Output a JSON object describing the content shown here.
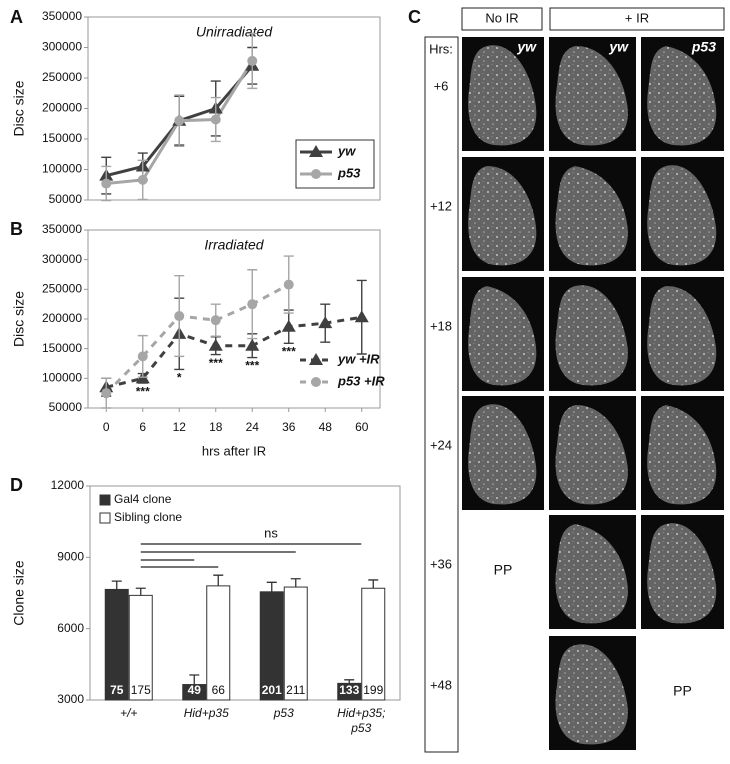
{
  "chart_data": [
    {
      "type": "line",
      "panel": "A",
      "title": "Unirradiated",
      "ylabel": "Disc size",
      "categories": [
        null,
        null,
        null,
        null,
        null,
        null,
        null,
        null
      ],
      "ylim": [
        50000,
        350000
      ],
      "yticks": [
        50000,
        100000,
        150000,
        200000,
        250000,
        300000,
        350000
      ],
      "legend": "lower right",
      "legend_box": true,
      "series": [
        {
          "name": "yw",
          "color": "#404040",
          "marker": "triangle",
          "dashed": false,
          "values": [
            90000,
            105000,
            180000,
            200000,
            270000,
            null,
            null,
            null
          ],
          "errors": [
            30000,
            22000,
            40000,
            45000,
            30000,
            null,
            null,
            null
          ]
        },
        {
          "name": "p53",
          "color": "#a6a6a6",
          "marker": "circle",
          "dashed": false,
          "values": [
            77000,
            83000,
            180000,
            182000,
            278000,
            null,
            null,
            null
          ],
          "errors": [
            28000,
            32000,
            42000,
            36000,
            45000,
            null,
            null,
            null
          ]
        }
      ]
    },
    {
      "type": "line",
      "panel": "B",
      "title": "Irradiated",
      "ylabel": "Disc size",
      "xlabel": "hrs after IR",
      "categories": [
        "0",
        "6",
        "12",
        "18",
        "24",
        "36",
        "48",
        "60"
      ],
      "ylim": [
        50000,
        350000
      ],
      "yticks": [
        50000,
        100000,
        150000,
        200000,
        250000,
        300000,
        350000
      ],
      "legend": "lower right",
      "legend_box": false,
      "annotations": [
        null,
        "***",
        "*",
        "***",
        "***",
        "***",
        null,
        null
      ],
      "series": [
        {
          "name": "yw +IR",
          "color": "#404040",
          "marker": "triangle",
          "dashed": true,
          "values": [
            85000,
            100000,
            175000,
            155000,
            155000,
            187000,
            193000,
            203000
          ],
          "errors": [
            15000,
            8000,
            60000,
            15000,
            20000,
            28000,
            32000,
            62000
          ]
        },
        {
          "name": "p53 +IR",
          "color": "#a6a6a6",
          "marker": "circle",
          "dashed": true,
          "values": [
            75000,
            137000,
            205000,
            198000,
            225000,
            258000,
            null,
            null
          ],
          "errors": [
            25000,
            35000,
            68000,
            27000,
            58000,
            48000,
            null,
            null
          ]
        }
      ]
    },
    {
      "type": "bar",
      "panel": "D",
      "ylabel": "Clone size",
      "categories": [
        "+/+",
        "Hid+p35",
        "p53",
        "Hid+p35; p53"
      ],
      "ylim": [
        3000,
        12000
      ],
      "yticks": [
        3000,
        6000,
        9000,
        12000
      ],
      "annotation": "ns",
      "series": [
        {
          "name": "Gal4 clone",
          "color": "#333333",
          "values": [
            7650,
            3650,
            7550,
            3700
          ],
          "errors": [
            350,
            400,
            400,
            150
          ],
          "counts": [
            "75",
            "49",
            "201",
            "133"
          ]
        },
        {
          "name": "Sibling clone",
          "color": "#ffffff",
          "values": [
            7400,
            7800,
            7750,
            7700
          ],
          "errors": [
            300,
            450,
            350,
            350
          ],
          "counts": [
            "175",
            "66",
            "211",
            "199"
          ]
        }
      ]
    }
  ],
  "panel_c": {
    "label": "C",
    "column_groups": [
      "No IR",
      "+ IR"
    ],
    "row_header": "Hrs:",
    "columns": [
      "yw",
      "yw",
      "p53"
    ],
    "rows": [
      "+6",
      "+12",
      "+18",
      "+24",
      "+36",
      "+48"
    ],
    "cells": [
      [
        null,
        null,
        null
      ],
      [
        null,
        null,
        null
      ],
      [
        null,
        null,
        null
      ],
      [
        null,
        null,
        null
      ],
      [
        "PP",
        null,
        null
      ],
      [
        null,
        null,
        "PP"
      ]
    ]
  }
}
